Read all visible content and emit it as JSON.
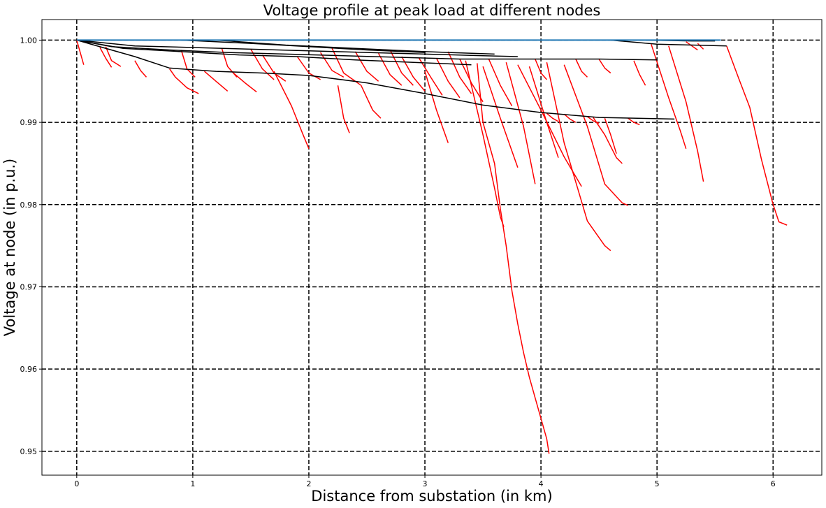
{
  "chart_data": {
    "type": "line",
    "title": "Voltage profile at peak load at different nodes",
    "xlabel": "Distance from substation (in km)",
    "ylabel": "Voltage at node (in p.u.)",
    "xlim": [
      -0.3,
      6.42
    ],
    "ylim": [
      0.9471,
      1.0025
    ],
    "xticks": [
      0,
      1,
      2,
      3,
      4,
      5,
      6
    ],
    "xtick_labels": [
      "0",
      "1",
      "2",
      "3",
      "4",
      "5",
      "6"
    ],
    "yticks": [
      0.95,
      0.96,
      0.97,
      0.98,
      0.99,
      1.0
    ],
    "ytick_labels": [
      "0.95",
      "0.96",
      "0.97",
      "0.98",
      "0.99",
      "1.00"
    ],
    "grid": true,
    "colors": {
      "main_feeder": "#1f77b4",
      "primary": "#000000",
      "laterals": "#ff0000"
    },
    "series": [
      {
        "role": "main_feeder",
        "x": [
          0,
          5.55
        ],
        "y": [
          1.0,
          1.0
        ]
      },
      {
        "role": "primary",
        "x": [
          0,
          0.5,
          1.0,
          1.5,
          2.0,
          2.5,
          3.0,
          3.5,
          3.8
        ],
        "y": [
          1.0,
          0.9993,
          0.9991,
          0.9989,
          0.9987,
          0.9985,
          0.9983,
          0.9981,
          0.998
        ]
      },
      {
        "role": "primary",
        "x": [
          0,
          0.3,
          0.8,
          1.3,
          1.8,
          2.3,
          2.8,
          3.3,
          3.7,
          4.5,
          5.0
        ],
        "y": [
          1.0,
          0.9992,
          0.9988,
          0.9985,
          0.9983,
          0.9981,
          0.9979,
          0.9977,
          0.9977,
          0.9977,
          0.9976
        ]
      },
      {
        "role": "primary",
        "x": [
          0,
          0.4,
          0.9,
          1.4,
          1.9,
          2.4,
          2.9,
          3.4
        ],
        "y": [
          1.0,
          0.999,
          0.9986,
          0.9982,
          0.998,
          0.9976,
          0.9973,
          0.997
        ]
      },
      {
        "role": "primary",
        "x": [
          0,
          0.5,
          0.8,
          1.2,
          1.6,
          2.0,
          2.5,
          3.0,
          3.5,
          4.0,
          4.5,
          5.15
        ],
        "y": [
          1.0,
          0.998,
          0.9966,
          0.9962,
          0.996,
          0.9957,
          0.9948,
          0.9935,
          0.9921,
          0.9912,
          0.9906,
          0.9904
        ]
      },
      {
        "role": "primary",
        "x": [
          0.9,
          1.5,
          2.0,
          2.5,
          3.0
        ],
        "y": [
          1.0,
          0.9996,
          0.9992,
          0.9988,
          0.9985
        ]
      },
      {
        "role": "primary",
        "x": [
          1.2,
          1.8,
          2.4,
          3.0,
          3.6
        ],
        "y": [
          1.0,
          0.9994,
          0.999,
          0.9986,
          0.9983
        ]
      },
      {
        "role": "primary",
        "x": [
          4.6,
          5.0,
          5.6
        ],
        "y": [
          1.0,
          0.9995,
          0.9993
        ]
      },
      {
        "role": "primary",
        "x": [
          4.9,
          5.3,
          5.5
        ],
        "y": [
          1.0,
          0.9999,
          0.9999
        ]
      },
      {
        "role": "lateral",
        "x": [
          3.45,
          3.5,
          3.6,
          3.65,
          3.7,
          3.75,
          3.8,
          3.85,
          3.9,
          3.95,
          4.0,
          4.05,
          4.07
        ],
        "y": [
          0.9972,
          0.99,
          0.985,
          0.9795,
          0.975,
          0.9695,
          0.9655,
          0.962,
          0.959,
          0.9565,
          0.954,
          0.9515,
          0.9497
        ]
      },
      {
        "role": "lateral",
        "x": [
          3.35,
          3.5,
          3.6,
          3.65,
          3.68
        ],
        "y": [
          0.9975,
          0.9885,
          0.982,
          0.9785,
          0.9773
        ]
      },
      {
        "role": "lateral",
        "x": [
          5.6,
          5.7,
          5.8,
          5.9,
          6.0,
          6.05,
          6.12
        ],
        "y": [
          0.9993,
          0.9955,
          0.9918,
          0.9855,
          0.98,
          0.9779,
          0.9775
        ]
      },
      {
        "role": "lateral",
        "x": [
          4.05,
          4.2,
          4.4,
          4.55,
          4.6
        ],
        "y": [
          0.9973,
          0.9875,
          0.978,
          0.975,
          0.9744
        ]
      },
      {
        "role": "lateral",
        "x": [
          4.2,
          4.4,
          4.55,
          4.7,
          4.75
        ],
        "y": [
          0.997,
          0.9895,
          0.9825,
          0.9802,
          0.9799
        ]
      },
      {
        "role": "lateral",
        "x": [
          3.8,
          4.0,
          4.2,
          4.35
        ],
        "y": [
          0.997,
          0.9915,
          0.9858,
          0.9822
        ]
      },
      {
        "role": "lateral",
        "x": [
          3.7,
          3.85,
          3.95
        ],
        "y": [
          0.9973,
          0.9895,
          0.9825
        ]
      },
      {
        "role": "lateral",
        "x": [
          5.1,
          5.25,
          5.35,
          5.4
        ],
        "y": [
          0.9993,
          0.9925,
          0.9865,
          0.9828
        ]
      },
      {
        "role": "lateral",
        "x": [
          4.95,
          5.1,
          5.2,
          5.25
        ],
        "y": [
          0.9995,
          0.993,
          0.989,
          0.9868
        ]
      },
      {
        "role": "lateral",
        "x": [
          1.7,
          1.85,
          1.95,
          2.0
        ],
        "y": [
          0.9962,
          0.992,
          0.9885,
          0.9868
        ]
      },
      {
        "role": "lateral",
        "x": [
          2.25,
          2.3,
          2.35
        ],
        "y": [
          0.9945,
          0.9905,
          0.9887
        ]
      },
      {
        "role": "lateral",
        "x": [
          2.45,
          2.55,
          2.62
        ],
        "y": [
          0.9945,
          0.9915,
          0.9905
        ]
      },
      {
        "role": "lateral",
        "x": [
          3.0,
          3.1,
          3.2
        ],
        "y": [
          0.9962,
          0.9915,
          0.9875
        ]
      },
      {
        "role": "lateral",
        "x": [
          3.5,
          3.65,
          3.75,
          3.8
        ],
        "y": [
          0.9968,
          0.9905,
          0.9865,
          0.9845
        ]
      },
      {
        "role": "lateral",
        "x": [
          3.9,
          4.05,
          4.15
        ],
        "y": [
          0.9968,
          0.99,
          0.9857
        ]
      },
      {
        "role": "lateral",
        "x": [
          4.45,
          4.55,
          4.65,
          4.7
        ],
        "y": [
          0.9906,
          0.9885,
          0.9857,
          0.985
        ]
      },
      {
        "role": "lateral",
        "x": [
          4.55,
          4.6,
          4.65
        ],
        "y": [
          0.9905,
          0.9885,
          0.9862
        ]
      },
      {
        "role": "lateral",
        "x": [
          0.0,
          0.03,
          0.06
        ],
        "y": [
          1.0,
          0.9985,
          0.997
        ]
      },
      {
        "role": "lateral",
        "x": [
          0.2,
          0.25,
          0.3
        ],
        "y": [
          0.9991,
          0.9978,
          0.9967
        ]
      },
      {
        "role": "lateral",
        "x": [
          0.5,
          0.55,
          0.6
        ],
        "y": [
          0.9975,
          0.9963,
          0.9955
        ]
      },
      {
        "role": "lateral",
        "x": [
          0.8,
          0.85,
          0.95,
          1.05
        ],
        "y": [
          0.9965,
          0.9955,
          0.9942,
          0.9935
        ]
      },
      {
        "role": "lateral",
        "x": [
          1.1,
          1.2,
          1.3
        ],
        "y": [
          0.9962,
          0.995,
          0.9938
        ]
      },
      {
        "role": "lateral",
        "x": [
          1.35,
          1.45,
          1.55
        ],
        "y": [
          0.996,
          0.9948,
          0.9937
        ]
      },
      {
        "role": "lateral",
        "x": [
          1.6,
          1.7,
          1.8
        ],
        "y": [
          0.9982,
          0.996,
          0.995
        ]
      },
      {
        "role": "lateral",
        "x": [
          1.9,
          2.0,
          2.1
        ],
        "y": [
          0.998,
          0.996,
          0.9952
        ]
      },
      {
        "role": "lateral",
        "x": [
          2.1,
          2.2,
          2.3
        ],
        "y": [
          0.9985,
          0.9963,
          0.9955
        ]
      },
      {
        "role": "lateral",
        "x": [
          2.4,
          2.5,
          2.6
        ],
        "y": [
          0.9986,
          0.9962,
          0.995
        ]
      },
      {
        "role": "lateral",
        "x": [
          2.6,
          2.7,
          2.8
        ],
        "y": [
          0.9984,
          0.9958,
          0.9945
        ]
      },
      {
        "role": "lateral",
        "x": [
          2.8,
          2.9,
          3.0
        ],
        "y": [
          0.998,
          0.9955,
          0.9938
        ]
      },
      {
        "role": "lateral",
        "x": [
          2.95,
          3.05,
          3.15
        ],
        "y": [
          0.9978,
          0.9955,
          0.9933
        ]
      },
      {
        "role": "lateral",
        "x": [
          3.1,
          3.2,
          3.3
        ],
        "y": [
          0.9978,
          0.995,
          0.993
        ]
      },
      {
        "role": "lateral",
        "x": [
          3.3,
          3.4,
          3.5
        ],
        "y": [
          0.9977,
          0.9948,
          0.9925
        ]
      },
      {
        "role": "lateral",
        "x": [
          3.55,
          3.65,
          3.75
        ],
        "y": [
          0.9977,
          0.9945,
          0.992
        ]
      },
      {
        "role": "lateral",
        "x": [
          3.95,
          4.0,
          4.05
        ],
        "y": [
          0.9977,
          0.996,
          0.9952
        ]
      },
      {
        "role": "lateral",
        "x": [
          4.3,
          4.35,
          4.4
        ],
        "y": [
          0.9977,
          0.9962,
          0.9955
        ]
      },
      {
        "role": "lateral",
        "x": [
          4.5,
          4.55,
          4.6
        ],
        "y": [
          0.9977,
          0.9966,
          0.996
        ]
      },
      {
        "role": "lateral",
        "x": [
          4.8,
          4.85,
          4.9
        ],
        "y": [
          0.9975,
          0.9958,
          0.9945
        ]
      },
      {
        "role": "lateral",
        "x": [
          4.05,
          4.1,
          4.15
        ],
        "y": [
          0.9911,
          0.9905,
          0.9901
        ]
      },
      {
        "role": "lateral",
        "x": [
          4.2,
          4.25,
          4.3
        ],
        "y": [
          0.991,
          0.9904,
          0.99
        ]
      },
      {
        "role": "lateral",
        "x": [
          4.4,
          4.45,
          4.5
        ],
        "y": [
          0.9907,
          0.9902,
          0.9899
        ]
      },
      {
        "role": "lateral",
        "x": [
          4.75,
          4.8,
          4.85
        ],
        "y": [
          0.9905,
          0.99,
          0.9897
        ]
      },
      {
        "role": "lateral",
        "x": [
          5.25,
          5.3,
          5.35
        ],
        "y": [
          0.9998,
          0.9993,
          0.9988
        ]
      },
      {
        "role": "lateral",
        "x": [
          5.35,
          5.4
        ],
        "y": [
          0.9996,
          0.9989
        ]
      },
      {
        "role": "lateral",
        "x": [
          0.25,
          0.3,
          0.38
        ],
        "y": [
          0.9992,
          0.9975,
          0.9968
        ]
      },
      {
        "role": "lateral",
        "x": [
          0.9,
          0.95,
          1.02
        ],
        "y": [
          0.9988,
          0.9965,
          0.9955
        ]
      },
      {
        "role": "lateral",
        "x": [
          1.25,
          1.3,
          1.38
        ],
        "y": [
          0.999,
          0.9968,
          0.9955
        ]
      },
      {
        "role": "lateral",
        "x": [
          1.5,
          1.6,
          1.7
        ],
        "y": [
          0.9989,
          0.9965,
          0.9952
        ]
      },
      {
        "role": "lateral",
        "x": [
          2.2,
          2.3,
          2.45
        ],
        "y": [
          0.999,
          0.996,
          0.9945
        ]
      },
      {
        "role": "lateral",
        "x": [
          2.7,
          2.8,
          2.9
        ],
        "y": [
          0.9988,
          0.996,
          0.9945
        ]
      },
      {
        "role": "lateral",
        "x": [
          3.2,
          3.3,
          3.4
        ],
        "y": [
          0.9986,
          0.9955,
          0.9935
        ]
      }
    ]
  }
}
